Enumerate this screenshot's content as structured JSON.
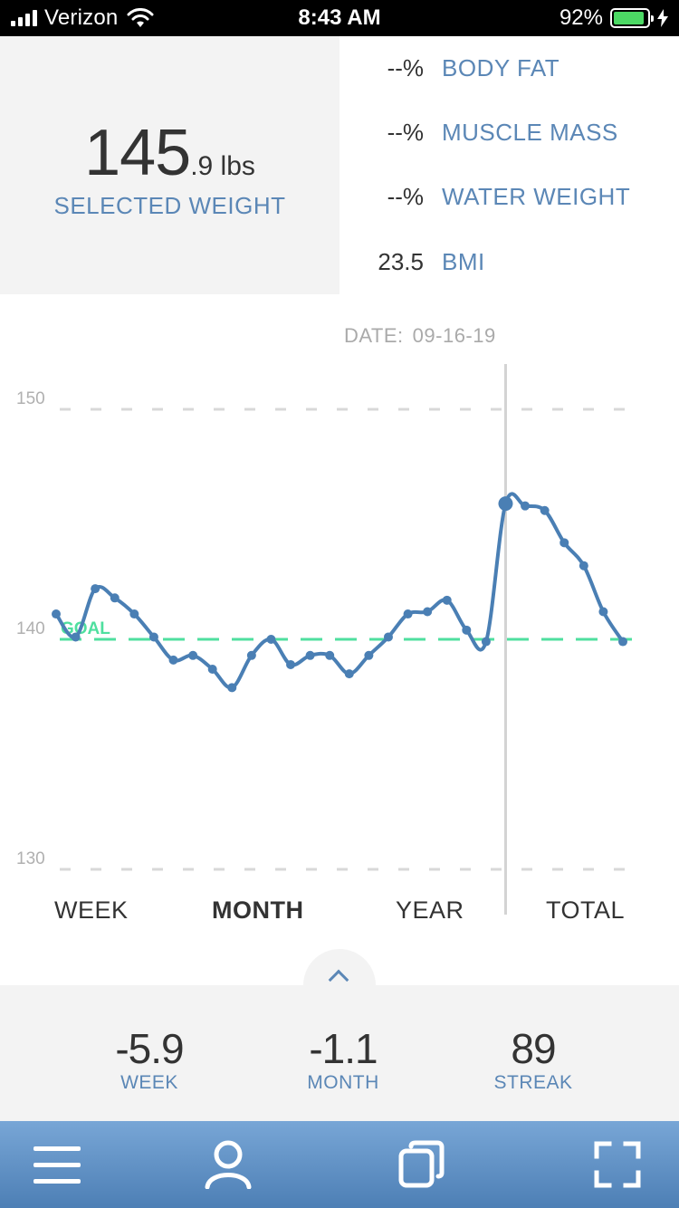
{
  "status_bar": {
    "carrier": "Verizon",
    "time": "8:43 AM",
    "battery_percent": "92%",
    "battery_level": 0.92
  },
  "selected": {
    "weight_main": "145",
    "weight_decimal": ".9 lbs",
    "label": "SELECTED WEIGHT"
  },
  "metrics": [
    {
      "value": "--%",
      "name": "BODY FAT"
    },
    {
      "value": "--%",
      "name": "MUSCLE MASS"
    },
    {
      "value": "--%",
      "name": "WATER WEIGHT"
    },
    {
      "value": "23.5",
      "name": "BMI"
    }
  ],
  "chart": {
    "date_label": "DATE:",
    "date_value": "09-16-19",
    "goal_label": "GOAL"
  },
  "chart_data": {
    "type": "line",
    "y_ticks": [
      "150",
      "140",
      "130"
    ],
    "ylim": [
      130,
      150
    ],
    "goal": 140,
    "selected_index": 23,
    "grid": true,
    "series": [
      {
        "values": [
          141.1,
          140.1,
          142.2,
          141.8,
          141.1,
          140.1,
          139.1,
          139.3,
          138.7,
          137.9,
          139.3,
          140.0,
          138.9,
          139.3,
          139.3,
          138.5,
          139.3,
          140.1,
          141.1,
          141.2,
          141.7,
          140.4,
          139.9,
          145.9,
          145.8,
          145.6,
          144.2,
          143.2,
          141.2,
          139.9
        ]
      }
    ],
    "point_color": "#4a7fb4",
    "goal_color": "#4fdf9f"
  },
  "tabs": [
    {
      "label": "WEEK",
      "active": false
    },
    {
      "label": "MONTH",
      "active": true
    },
    {
      "label": "YEAR",
      "active": false
    },
    {
      "label": "TOTAL",
      "active": false
    }
  ],
  "summary": [
    {
      "value": "-5.9",
      "label": "WEEK"
    },
    {
      "value": "-1.1",
      "label": "MONTH"
    },
    {
      "value": "89",
      "label": "STREAK"
    }
  ],
  "nav": {
    "icons": [
      "menu-icon",
      "profile-icon",
      "copy-icon",
      "fullscreen-icon"
    ]
  }
}
